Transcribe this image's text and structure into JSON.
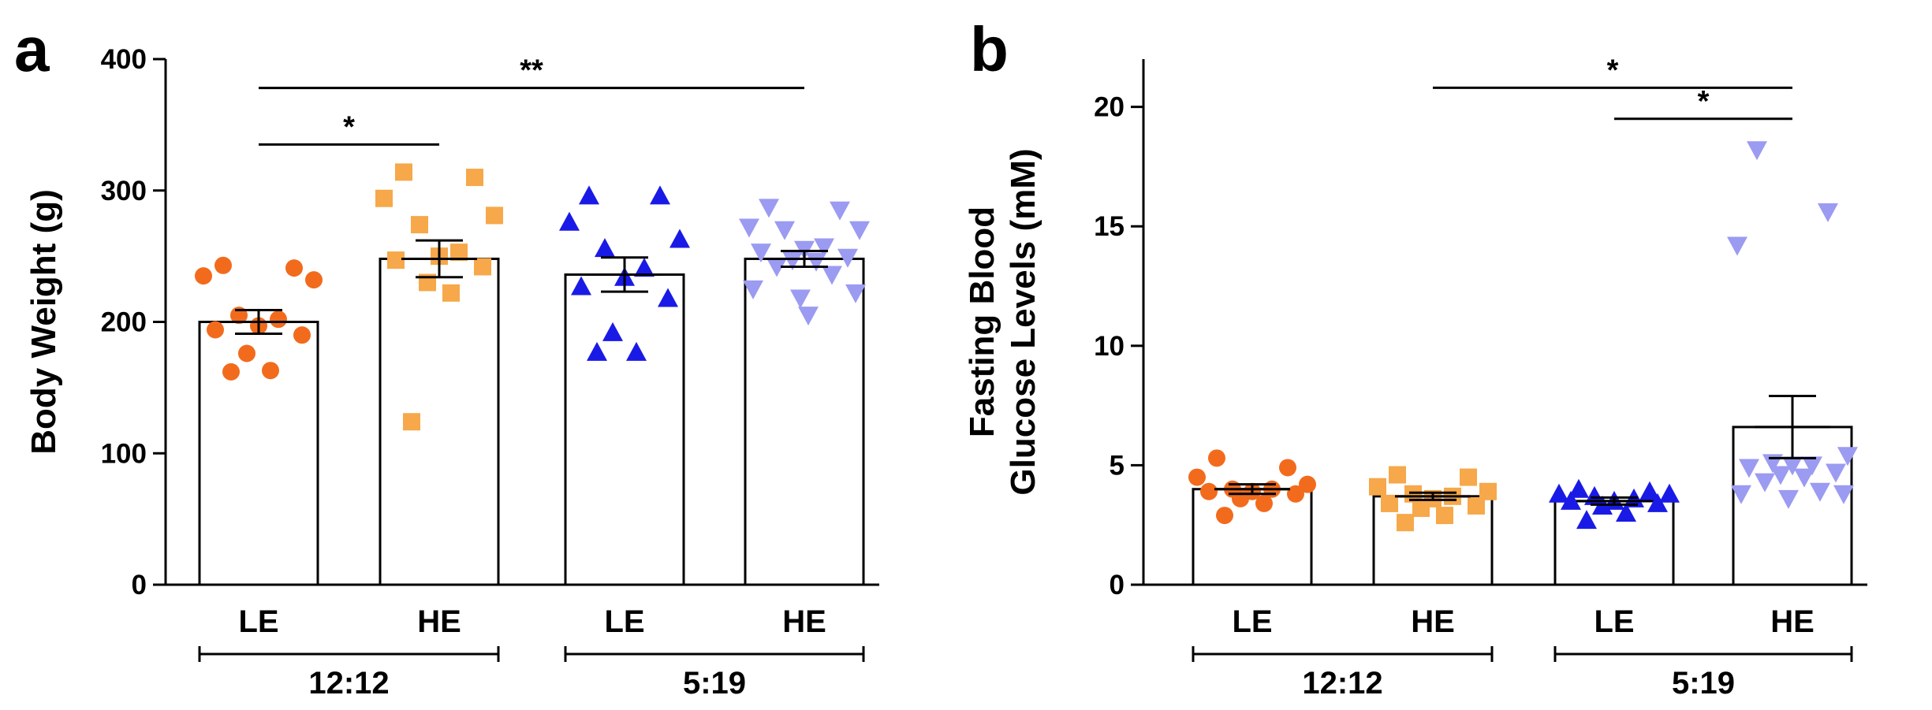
{
  "chart_data": [
    {
      "panel_label": "a",
      "type": "bar",
      "ylabel_lines": [
        "Body Weight (g)"
      ],
      "ylim": [
        0,
        400
      ],
      "yticks": [
        0,
        100,
        200,
        300,
        400
      ],
      "categories": [
        "LE",
        "HE",
        "LE",
        "HE"
      ],
      "groups": [
        {
          "label": "12:12",
          "bars": [
            0,
            1
          ]
        },
        {
          "label": "5:19",
          "bars": [
            2,
            3
          ]
        }
      ],
      "bars": [
        {
          "label": "LE",
          "mean": 200,
          "sem": 9,
          "color": "#F26B1D",
          "marker": "circle",
          "points": [
            243,
            241,
            235,
            232,
            205,
            202,
            197,
            194,
            190,
            176,
            163,
            162
          ]
        },
        {
          "label": "HE",
          "mean": 248,
          "sem": 14,
          "color": "#F6A84A",
          "marker": "square",
          "points": [
            314,
            310,
            294,
            281,
            274,
            253,
            250,
            247,
            242,
            230,
            222,
            124
          ]
        },
        {
          "label": "LE",
          "mean": 236,
          "sem": 13,
          "color": "#1A1AE6",
          "marker": "triangle-up",
          "points": [
            296,
            296,
            276,
            263,
            256,
            241,
            234,
            227,
            218,
            192,
            177,
            177
          ]
        },
        {
          "label": "HE",
          "mean": 248,
          "sem": 6,
          "color": "#9B9BF2",
          "marker": "triangle-down",
          "points": [
            287,
            285,
            272,
            270,
            270,
            257,
            255,
            253,
            249,
            247,
            246,
            242,
            236,
            225,
            222,
            218,
            205
          ]
        }
      ],
      "significance": [
        {
          "from": 0,
          "to": 1,
          "label": "*",
          "y": 335
        },
        {
          "from": 0,
          "to": 3,
          "label": "**",
          "y": 378
        }
      ]
    },
    {
      "panel_label": "b",
      "type": "bar",
      "ylabel_lines": [
        "Fasting Blood",
        "Glucose Levels (mM)"
      ],
      "ylim": [
        0,
        22
      ],
      "yticks": [
        0,
        5,
        10,
        15,
        20
      ],
      "categories": [
        "LE",
        "HE",
        "LE",
        "HE"
      ],
      "groups": [
        {
          "label": "12:12",
          "bars": [
            0,
            1
          ]
        },
        {
          "label": "5:19",
          "bars": [
            2,
            3
          ]
        }
      ],
      "bars": [
        {
          "label": "LE",
          "mean": 4.0,
          "sem": 0.2,
          "color": "#F26B1D",
          "marker": "circle",
          "points": [
            5.3,
            4.9,
            4.5,
            4.2,
            4.0,
            4.0,
            3.9,
            3.9,
            3.8,
            3.6,
            3.4,
            2.9
          ]
        },
        {
          "label": "HE",
          "mean": 3.7,
          "sem": 0.15,
          "color": "#F6A84A",
          "marker": "square",
          "points": [
            4.6,
            4.5,
            4.1,
            3.9,
            3.8,
            3.7,
            3.6,
            3.4,
            3.3,
            3.2,
            2.9,
            2.6
          ]
        },
        {
          "label": "LE",
          "mean": 3.5,
          "sem": 0.15,
          "color": "#1A1AE6",
          "marker": "triangle-up",
          "points": [
            4.0,
            3.9,
            3.8,
            3.8,
            3.7,
            3.6,
            3.5,
            3.5,
            3.4,
            3.3,
            3.0,
            2.7
          ]
        },
        {
          "label": "HE",
          "mean": 6.6,
          "sem": 1.3,
          "color": "#9B9BF2",
          "marker": "triangle-down",
          "points": [
            18.2,
            15.6,
            14.2,
            5.4,
            5.1,
            5.0,
            5.0,
            4.9,
            4.7,
            4.6,
            4.5,
            4.3,
            3.9,
            3.8,
            3.8,
            3.6
          ]
        }
      ],
      "significance": [
        {
          "from": 3,
          "to": 2,
          "label": "*",
          "y": 19.5
        },
        {
          "from": 3,
          "to": 1,
          "label": "*",
          "y": 20.8
        }
      ]
    }
  ]
}
